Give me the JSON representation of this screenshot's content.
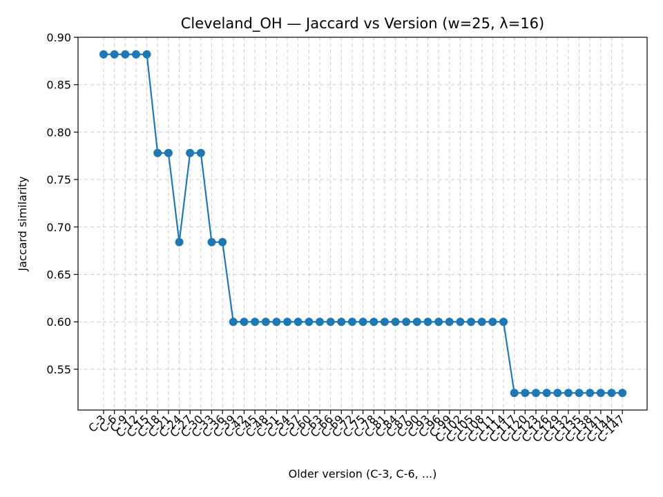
{
  "chart_data": {
    "type": "line",
    "title": "Cleveland_OH — Jaccard vs Version (w=25, λ=16)",
    "xlabel": "Older version (C-3, C-6, ...)",
    "ylabel": "Jaccard similarity",
    "ylim": [
      0.507,
      0.9
    ],
    "yticks": [
      0.55,
      0.6,
      0.65,
      0.7,
      0.75,
      0.8,
      0.85,
      0.9
    ],
    "ytick_labels": [
      "0.55",
      "0.60",
      "0.65",
      "0.70",
      "0.75",
      "0.80",
      "0.85",
      "0.90"
    ],
    "grid": true,
    "marker": "circle",
    "color": "#1f77b4",
    "categories": [
      "C-3",
      "C-6",
      "C-9",
      "C-12",
      "C-15",
      "C-18",
      "C-21",
      "C-24",
      "C-27",
      "C-30",
      "C-33",
      "C-36",
      "C-39",
      "C-42",
      "C-45",
      "C-48",
      "C-51",
      "C-54",
      "C-57",
      "C-60",
      "C-63",
      "C-66",
      "C-69",
      "C-72",
      "C-75",
      "C-78",
      "C-81",
      "C-84",
      "C-87",
      "C-90",
      "C-93",
      "C-96",
      "C-99",
      "C-102",
      "C-105",
      "C-108",
      "C-111",
      "C-114",
      "C-117",
      "C-120",
      "C-123",
      "C-126",
      "C-129",
      "C-132",
      "C-135",
      "C-138",
      "C-141",
      "C-144",
      "C-147"
    ],
    "values": [
      0.882,
      0.882,
      0.882,
      0.882,
      0.882,
      0.778,
      0.778,
      0.684,
      0.778,
      0.778,
      0.684,
      0.684,
      0.6,
      0.6,
      0.6,
      0.6,
      0.6,
      0.6,
      0.6,
      0.6,
      0.6,
      0.6,
      0.6,
      0.6,
      0.6,
      0.6,
      0.6,
      0.6,
      0.6,
      0.6,
      0.6,
      0.6,
      0.6,
      0.6,
      0.6,
      0.6,
      0.6,
      0.6,
      0.525,
      0.525,
      0.525,
      0.525,
      0.525,
      0.525,
      0.525,
      0.525,
      0.525,
      0.525,
      0.525
    ]
  }
}
